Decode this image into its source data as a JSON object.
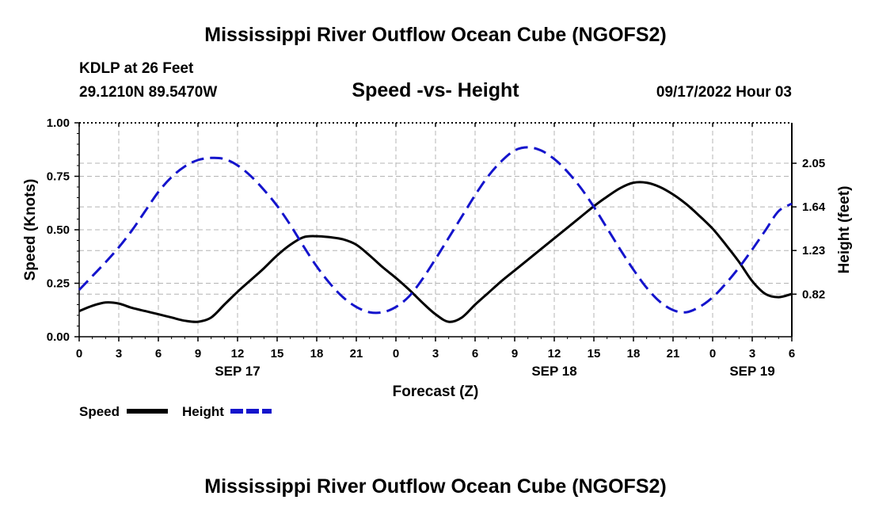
{
  "header": {
    "title": "Mississippi River Outflow Ocean Cube (NGOFS2)",
    "station": "KDLP at 26 Feet",
    "coords": "29.1210N  89.5470W",
    "subtitle": "Speed -vs- Height",
    "datetime": "09/17/2022 Hour 03"
  },
  "footer": {
    "title": "Mississippi River Outflow Ocean Cube (NGOFS2)"
  },
  "chart_data": {
    "type": "line",
    "title": "Speed -vs- Height",
    "xlabel": "Forecast (Z)",
    "ylabel": "Speed (Knots)",
    "y2label": "Height (feet)",
    "xlim": [
      0,
      54
    ],
    "ylim": [
      0,
      1.0
    ],
    "y2lim": [
      0.42,
      2.43
    ],
    "x_ticks": [
      0,
      3,
      6,
      9,
      12,
      15,
      18,
      21,
      24,
      27,
      30,
      33,
      36,
      39,
      42,
      45,
      48,
      51,
      54
    ],
    "x_tick_labels": [
      "0",
      "3",
      "6",
      "9",
      "12",
      "15",
      "18",
      "21",
      "0",
      "3",
      "6",
      "9",
      "12",
      "15",
      "18",
      "21",
      "0",
      "3",
      "6"
    ],
    "date_labels": [
      {
        "x": 12,
        "label": "SEP 17"
      },
      {
        "x": 36,
        "label": "SEP 18"
      },
      {
        "x": 51,
        "label": "SEP 19"
      }
    ],
    "y_ticks": [
      0.0,
      0.25,
      0.5,
      0.75,
      1.0
    ],
    "y_tick_labels": [
      "0.00",
      "0.25",
      "0.50",
      "0.75",
      "1.00"
    ],
    "y2_ticks": [
      0.82,
      1.23,
      1.64,
      2.05
    ],
    "y2_tick_labels": [
      "0.82",
      "1.23",
      "1.64",
      "2.05"
    ],
    "grid": true,
    "series": [
      {
        "name": "Speed",
        "axis": "left",
        "color": "#000000",
        "dash": "solid",
        "x": [
          0,
          1,
          2,
          3,
          4,
          5,
          6,
          7,
          8,
          9,
          10,
          11,
          12,
          13,
          14,
          15,
          16,
          17,
          18,
          19,
          20,
          21,
          22,
          23,
          24,
          25,
          26,
          27,
          28,
          29,
          30,
          31,
          32,
          33,
          34,
          35,
          36,
          37,
          38,
          39,
          40,
          41,
          42,
          43,
          44,
          45,
          46,
          47,
          48,
          49,
          50,
          51,
          52,
          53,
          54
        ],
        "values": [
          0.12,
          0.145,
          0.16,
          0.155,
          0.135,
          0.12,
          0.105,
          0.09,
          0.075,
          0.07,
          0.09,
          0.15,
          0.21,
          0.265,
          0.32,
          0.38,
          0.43,
          0.465,
          0.47,
          0.465,
          0.455,
          0.43,
          0.38,
          0.325,
          0.275,
          0.22,
          0.16,
          0.105,
          0.07,
          0.09,
          0.15,
          0.205,
          0.26,
          0.31,
          0.36,
          0.41,
          0.46,
          0.51,
          0.56,
          0.61,
          0.655,
          0.695,
          0.72,
          0.72,
          0.7,
          0.665,
          0.62,
          0.565,
          0.505,
          0.43,
          0.35,
          0.26,
          0.2,
          0.185,
          0.2
        ]
      },
      {
        "name": "Height",
        "axis": "right",
        "color": "#1414cc",
        "dash": "dashed",
        "x": [
          0,
          1,
          2,
          3,
          4,
          5,
          6,
          7,
          8,
          9,
          10,
          11,
          12,
          13,
          14,
          15,
          16,
          17,
          18,
          19,
          20,
          21,
          22,
          23,
          24,
          25,
          26,
          27,
          28,
          29,
          30,
          31,
          32,
          33,
          34,
          35,
          36,
          37,
          38,
          39,
          40,
          41,
          42,
          43,
          44,
          45,
          46,
          47,
          48,
          49,
          50,
          51,
          52,
          53,
          54
        ],
        "values": [
          0.86,
          0.99,
          1.12,
          1.26,
          1.42,
          1.6,
          1.78,
          1.92,
          2.02,
          2.08,
          2.1,
          2.09,
          2.03,
          1.93,
          1.8,
          1.65,
          1.47,
          1.27,
          1.08,
          0.92,
          0.79,
          0.7,
          0.65,
          0.65,
          0.7,
          0.8,
          0.96,
          1.15,
          1.35,
          1.55,
          1.75,
          1.93,
          2.07,
          2.17,
          2.2,
          2.17,
          2.09,
          1.97,
          1.82,
          1.64,
          1.44,
          1.24,
          1.05,
          0.88,
          0.75,
          0.67,
          0.65,
          0.7,
          0.79,
          0.92,
          1.07,
          1.24,
          1.42,
          1.6,
          1.67
        ]
      }
    ],
    "legend": {
      "placement": "bottom-left",
      "entries": [
        {
          "label": "Speed",
          "color": "#000000"
        },
        {
          "label": "Height",
          "color": "#1414cc"
        }
      ]
    }
  }
}
